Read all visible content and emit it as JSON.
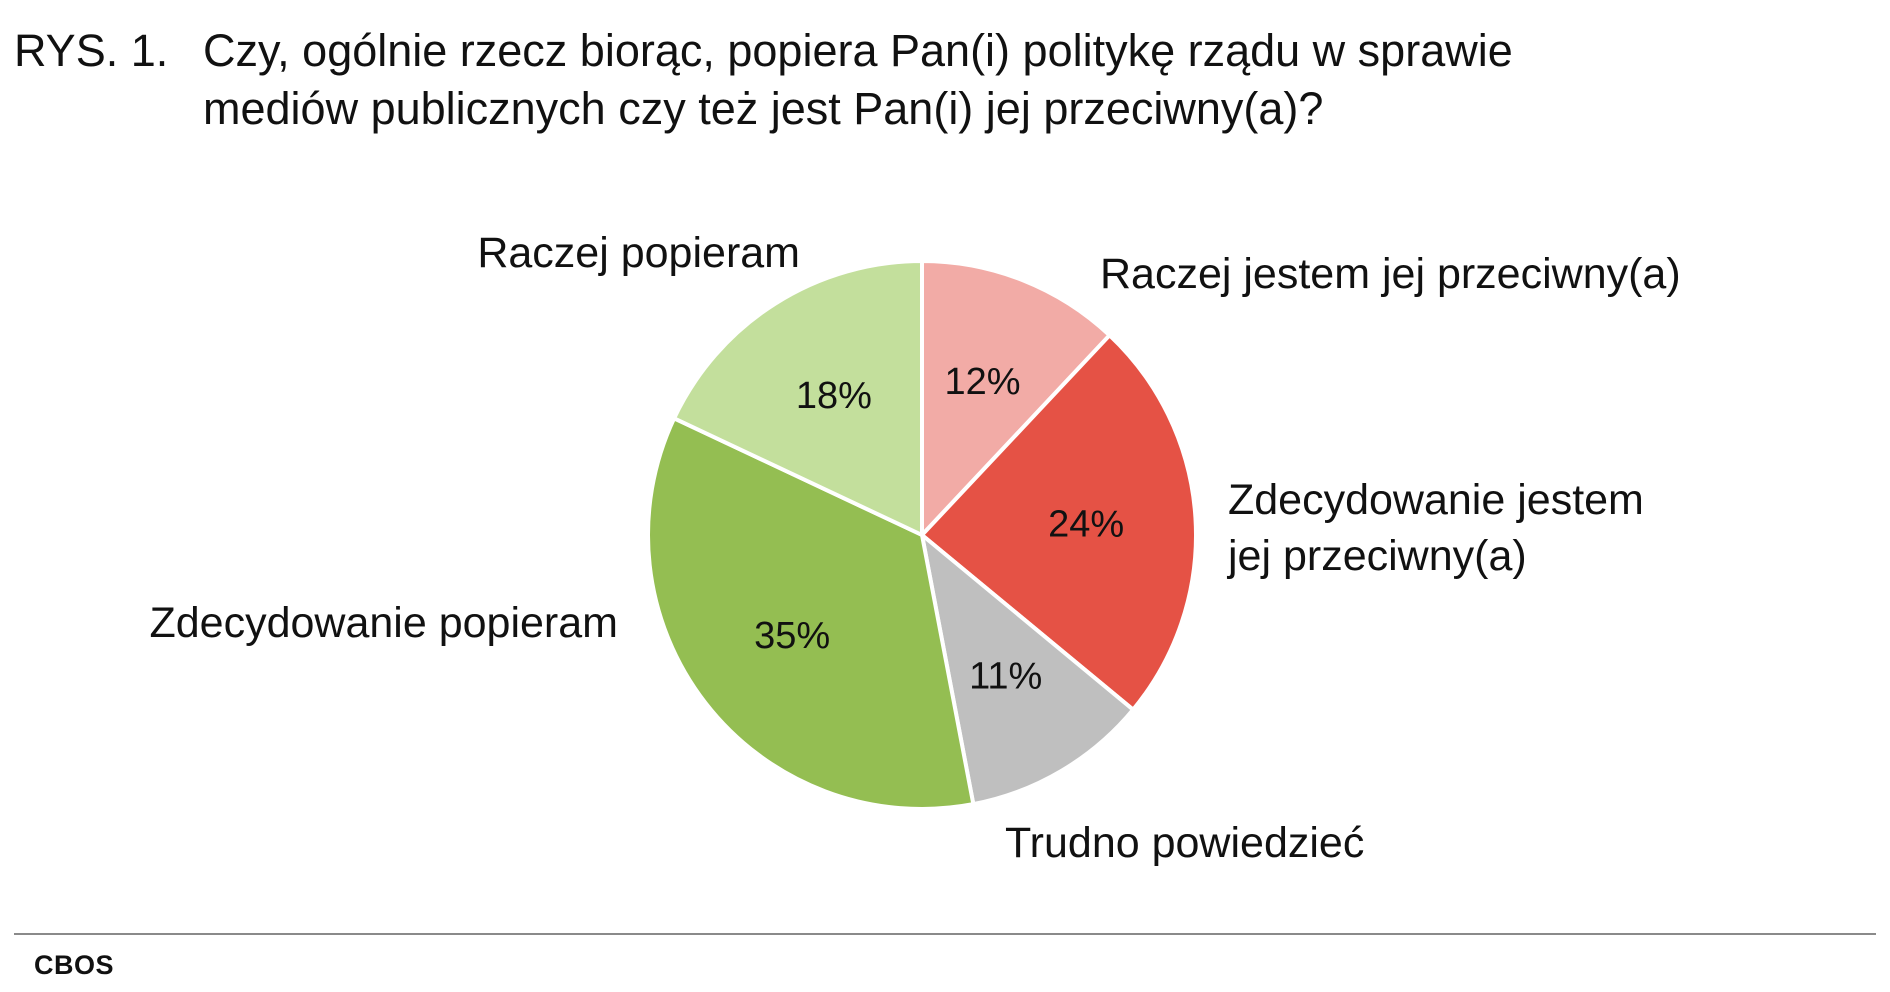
{
  "figure": {
    "label": "RYS. 1.",
    "title_lines": [
      "Czy, ogólnie rzecz biorąc, popiera Pan(i) politykę rządu w sprawie",
      "mediów publicznych czy też jest Pan(i) jej przeciwny(a)?"
    ],
    "source": "CBOS"
  },
  "chart_data": {
    "type": "pie",
    "title": "Czy, ogólnie rzecz biorąc, popiera Pan(i) politykę rządu w sprawie mediów publicznych czy też jest Pan(i) jej przeciwny(a)?",
    "slices": [
      {
        "label": [
          "Raczej jestem jej przeciwny(a)"
        ],
        "value": 12,
        "value_label": "12%",
        "color": "#f2aba6"
      },
      {
        "label": [
          "Zdecydowanie jestem",
          "jej przeciwny(a)"
        ],
        "value": 24,
        "value_label": "24%",
        "color": "#e55245"
      },
      {
        "label": [
          "Trudno powiedzieć"
        ],
        "value": 11,
        "value_label": "11%",
        "color": "#bfbfbf"
      },
      {
        "label": [
          "Zdecydowanie popieram"
        ],
        "value": 35,
        "value_label": "35%",
        "color": "#94be52"
      },
      {
        "label": [
          "Raczej popieram"
        ],
        "value": 18,
        "value_label": "18%",
        "color": "#c3df9c"
      }
    ],
    "start_position": "top",
    "direction": "clockwise",
    "slice_border_color": "#ffffff"
  }
}
